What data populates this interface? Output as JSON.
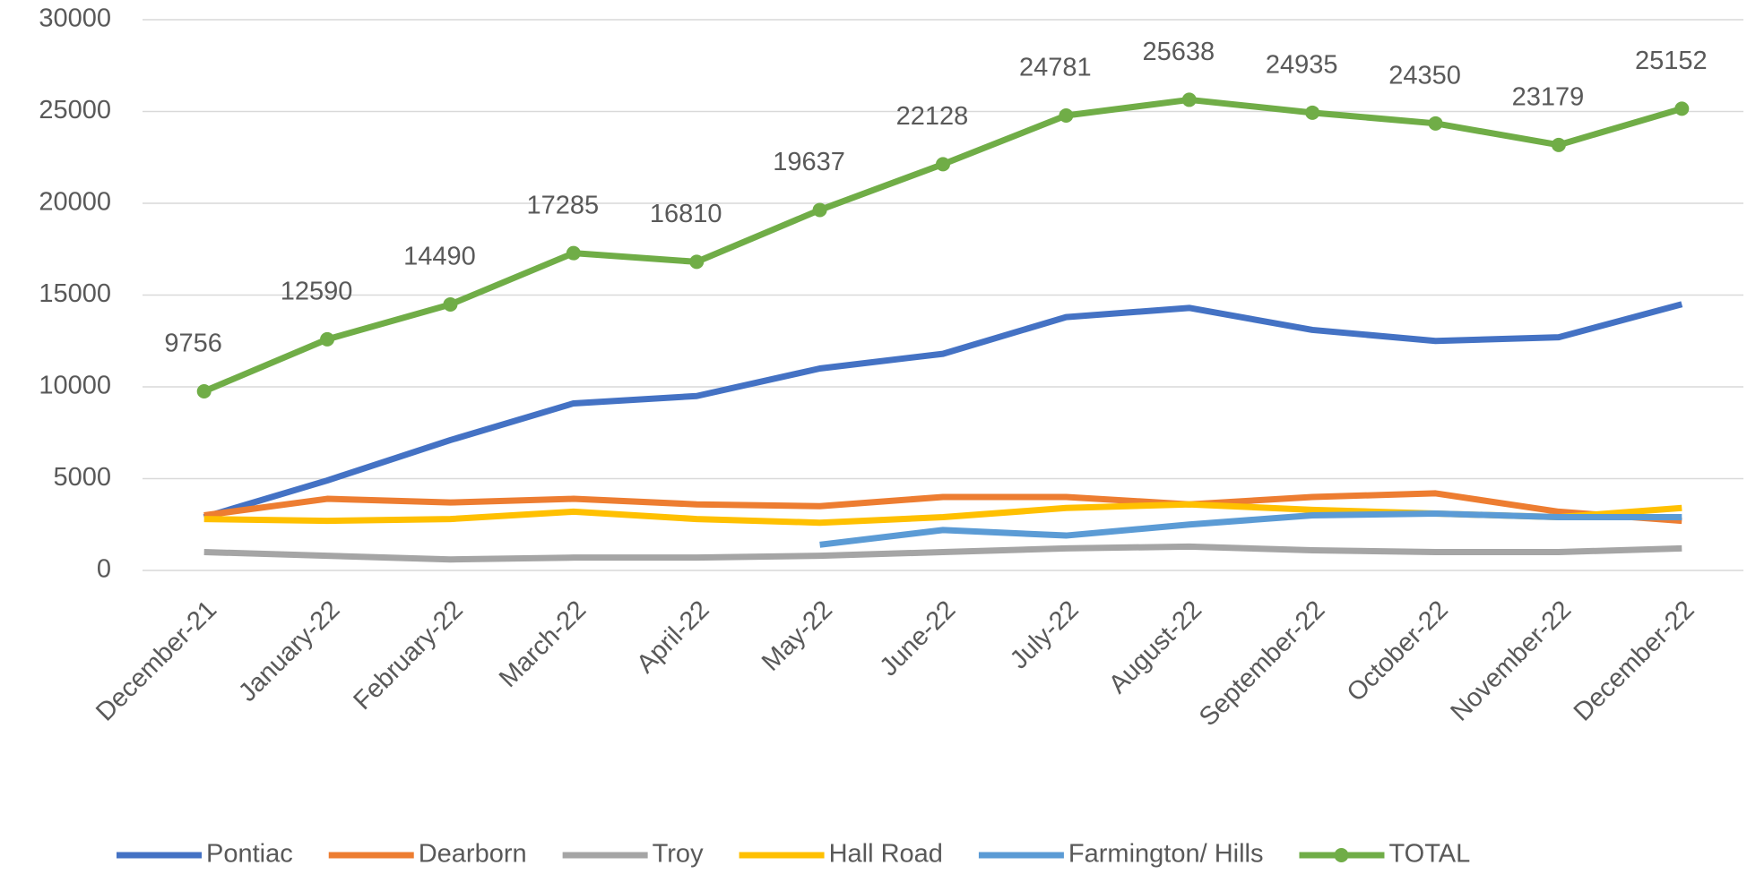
{
  "chart_data": {
    "type": "line",
    "categories": [
      "December-21",
      "January-22",
      "February-22",
      "March-22",
      "April-22",
      "May-22",
      "June-22",
      "July-22",
      "August-22",
      "September-22",
      "October-22",
      "November-22",
      "December-22"
    ],
    "series": [
      {
        "name": "Pontiac",
        "color": "#4472c4",
        "values": [
          2900,
          4900,
          7100,
          9100,
          9500,
          11000,
          11800,
          13800,
          14300,
          13100,
          12500,
          12700,
          14500
        ]
      },
      {
        "name": "Dearborn",
        "color": "#ed7d31",
        "values": [
          3000,
          3900,
          3700,
          3900,
          3600,
          3500,
          4000,
          4000,
          3600,
          4000,
          4200,
          3200,
          2700
        ]
      },
      {
        "name": "Troy",
        "color": "#a5a5a5",
        "values": [
          1000,
          800,
          600,
          700,
          700,
          800,
          1000,
          1200,
          1300,
          1100,
          1000,
          1000,
          1200
        ]
      },
      {
        "name": "Hall Road",
        "color": "#ffc000",
        "values": [
          2800,
          2700,
          2800,
          3200,
          2800,
          2600,
          2900,
          3400,
          3600,
          3300,
          3100,
          2900,
          3400
        ]
      },
      {
        "name": "Farmington/ Hills",
        "color": "#5b9bd5",
        "values": [
          null,
          null,
          null,
          null,
          null,
          1400,
          2200,
          1900,
          2500,
          3000,
          3100,
          2900,
          2900
        ]
      },
      {
        "name": "TOTAL",
        "color": "#70ad47",
        "markers": true,
        "data_labels": true,
        "values": [
          9756,
          12590,
          14490,
          17285,
          16810,
          19637,
          22128,
          24781,
          25638,
          24935,
          24350,
          23179,
          25152
        ]
      }
    ],
    "ylim": [
      0,
      30000
    ],
    "yticks": [
      0,
      5000,
      10000,
      15000,
      20000,
      25000,
      30000
    ],
    "grid": true,
    "legend": "bottom"
  }
}
